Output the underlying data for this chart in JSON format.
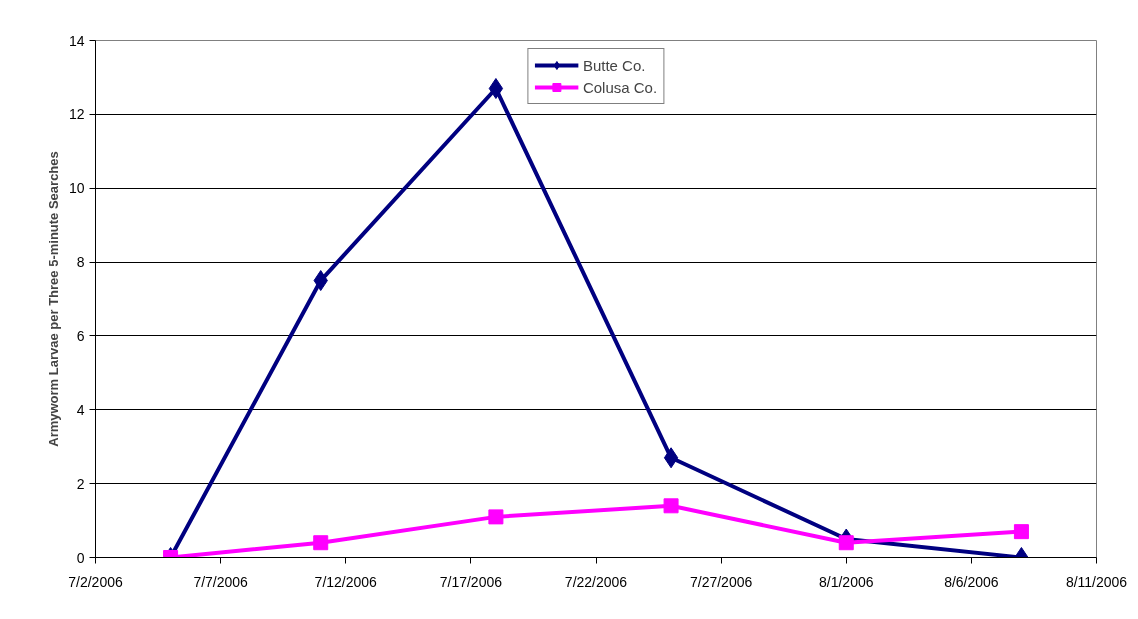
{
  "chart_data": {
    "type": "line",
    "ylabel": "Armyworm Larvae per Three 5-minute Searches",
    "x": [
      "2006-07-05",
      "2006-07-11",
      "2006-07-18",
      "2006-07-25",
      "2006-08-01",
      "2006-08-08"
    ],
    "series": [
      {
        "name": "Butte Co.",
        "color": "#000080",
        "marker": "diamond",
        "values": [
          0,
          7.5,
          12.7,
          2.7,
          0.5,
          0
        ]
      },
      {
        "name": "Colusa Co.",
        "color": "#ff00ff",
        "marker": "square",
        "values": [
          0,
          0.4,
          1.1,
          1.4,
          0.4,
          0.7
        ]
      }
    ],
    "xlim": [
      "2006-07-02",
      "2006-08-11"
    ],
    "xticks": [
      {
        "value": "2006-07-02",
        "label": "7/2/2006"
      },
      {
        "value": "2006-07-07",
        "label": "7/7/2006"
      },
      {
        "value": "2006-07-12",
        "label": "7/12/2006"
      },
      {
        "value": "2006-07-17",
        "label": "7/17/2006"
      },
      {
        "value": "2006-07-22",
        "label": "7/22/2006"
      },
      {
        "value": "2006-07-27",
        "label": "7/27/2006"
      },
      {
        "value": "2006-08-01",
        "label": "8/1/2006"
      },
      {
        "value": "2006-08-06",
        "label": "8/6/2006"
      },
      {
        "value": "2006-08-11",
        "label": "8/11/2006"
      }
    ],
    "ylim": [
      0,
      14
    ],
    "yticks": [
      0,
      2,
      4,
      6,
      8,
      10,
      12,
      14
    ],
    "grid": "y",
    "legend": "top",
    "line_style": "solid"
  }
}
